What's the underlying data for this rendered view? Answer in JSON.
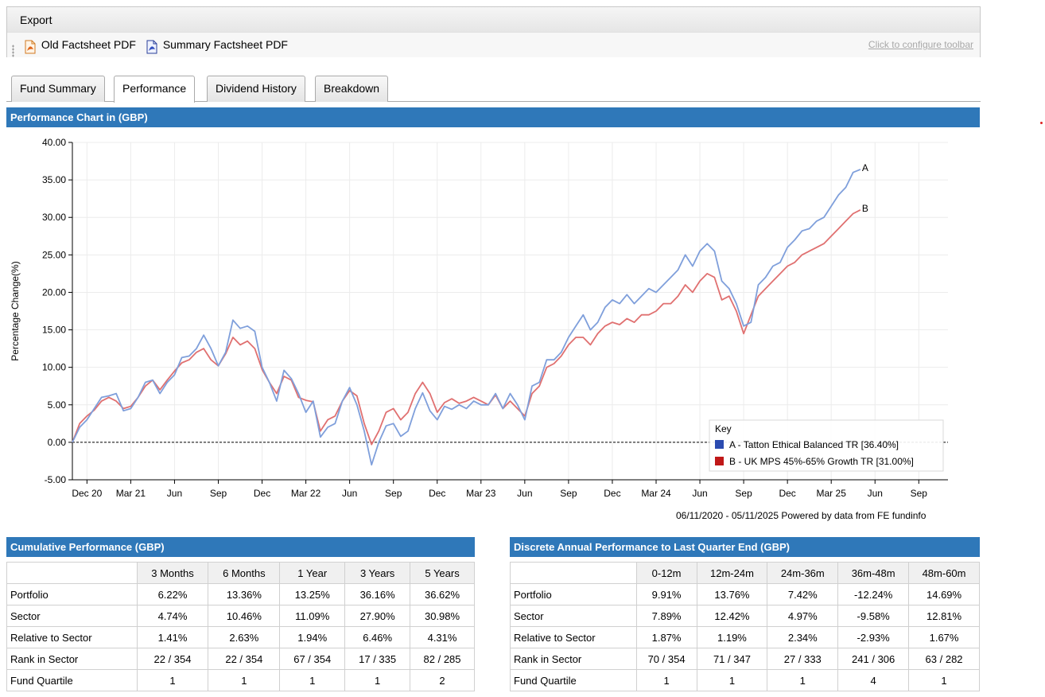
{
  "toolbar": {
    "export_label": "Export",
    "buttons": [
      {
        "label": "Old Factsheet PDF",
        "icon": "pdf-icon"
      },
      {
        "label": "Summary Factsheet PDF",
        "icon": "pdf-summary-icon"
      }
    ],
    "configure_link": "Click to configure toolbar"
  },
  "tabs": [
    {
      "label": "Fund Summary",
      "active": false
    },
    {
      "label": "Performance",
      "active": true
    },
    {
      "label": "Dividend History",
      "active": false
    },
    {
      "label": "Breakdown",
      "active": false
    }
  ],
  "chart_section": {
    "title": "Performance Chart in (GBP)",
    "source_text": "06/11/2020 - 05/11/2025 Powered by data from FE fundinfo"
  },
  "chart_data": {
    "type": "line",
    "ylabel": "Percentage Change(%)",
    "ylim": [
      -5,
      40
    ],
    "y_ticks": [
      "40.00",
      "35.00",
      "30.00",
      "25.00",
      "20.00",
      "15.00",
      "10.00",
      "5.00",
      "0.00",
      "-5.00"
    ],
    "x_ticks": [
      "Dec 20",
      "Mar 21",
      "Jun",
      "Sep",
      "Dec",
      "Mar 22",
      "Jun",
      "Sep",
      "Dec",
      "Mar 23",
      "Jun",
      "Sep",
      "Dec",
      "Mar 24",
      "Jun",
      "Sep",
      "Dec",
      "Mar 25",
      "Jun",
      "Sep"
    ],
    "x_range_months": [
      0,
      60
    ],
    "baseline": 0,
    "grid": true,
    "legend_title": "Key",
    "legend_position": "bottom-right",
    "series": [
      {
        "name": "A - Tatton Ethical Balanced TR [36.40%]",
        "end_label": "A",
        "color": "#7f9fdb",
        "key_color": "#2b4bb0",
        "points": [
          [
            0,
            0
          ],
          [
            0.5,
            2
          ],
          [
            1,
            3
          ],
          [
            1.5,
            4.5
          ],
          [
            2,
            6
          ],
          [
            2.5,
            6.2
          ],
          [
            3,
            6.5
          ],
          [
            3.5,
            4.2
          ],
          [
            4,
            4.5
          ],
          [
            4.5,
            6
          ],
          [
            5,
            8
          ],
          [
            5.5,
            8.3
          ],
          [
            6,
            6.5
          ],
          [
            6.5,
            8
          ],
          [
            7,
            9
          ],
          [
            7.5,
            11.3
          ],
          [
            8,
            11.5
          ],
          [
            8.5,
            12.5
          ],
          [
            9,
            14.3
          ],
          [
            9.5,
            12.5
          ],
          [
            10,
            10.2
          ],
          [
            10.5,
            12
          ],
          [
            11,
            16.3
          ],
          [
            11.5,
            15.2
          ],
          [
            12,
            15.5
          ],
          [
            12.5,
            14.8
          ],
          [
            13,
            10
          ],
          [
            13.5,
            8
          ],
          [
            14,
            5.5
          ],
          [
            14.5,
            9.6
          ],
          [
            15,
            8.5
          ],
          [
            15.5,
            6.5
          ],
          [
            16,
            4
          ],
          [
            16.5,
            5.5
          ],
          [
            17,
            0.7
          ],
          [
            17.5,
            2
          ],
          [
            18,
            2.5
          ],
          [
            18.5,
            5.5
          ],
          [
            19,
            7.3
          ],
          [
            19.5,
            5
          ],
          [
            20,
            1.5
          ],
          [
            20.5,
            -3
          ],
          [
            21,
            0
          ],
          [
            21.5,
            2.2
          ],
          [
            22,
            2.5
          ],
          [
            22.5,
            0.8
          ],
          [
            23,
            1.5
          ],
          [
            23.5,
            4.5
          ],
          [
            24,
            6.6
          ],
          [
            24.5,
            4.2
          ],
          [
            25,
            3
          ],
          [
            25.5,
            4.8
          ],
          [
            26,
            4.4
          ],
          [
            26.5,
            5
          ],
          [
            27,
            4.5
          ],
          [
            27.5,
            5.5
          ],
          [
            28,
            5
          ],
          [
            28.5,
            5
          ],
          [
            29,
            6.5
          ],
          [
            29.5,
            4.5
          ],
          [
            30,
            6.5
          ],
          [
            30.5,
            5
          ],
          [
            31,
            3
          ],
          [
            31.5,
            7.5
          ],
          [
            32,
            8
          ],
          [
            32.5,
            11
          ],
          [
            33,
            11
          ],
          [
            33.5,
            12
          ],
          [
            34,
            14
          ],
          [
            34.5,
            15.5
          ],
          [
            35,
            17
          ],
          [
            35.5,
            15
          ],
          [
            36,
            16
          ],
          [
            36.5,
            18
          ],
          [
            37,
            19
          ],
          [
            37.5,
            18.5
          ],
          [
            38,
            19.7
          ],
          [
            38.5,
            18.5
          ],
          [
            39,
            19.5
          ],
          [
            39.5,
            20.5
          ],
          [
            40,
            20
          ],
          [
            40.5,
            21
          ],
          [
            41,
            22
          ],
          [
            41.5,
            23
          ],
          [
            42,
            25
          ],
          [
            42.5,
            23.5
          ],
          [
            43,
            25.5
          ],
          [
            43.5,
            26.5
          ],
          [
            44,
            25.5
          ],
          [
            44.5,
            21.5
          ],
          [
            45,
            20.5
          ],
          [
            45.5,
            18.5
          ],
          [
            46,
            15.5
          ],
          [
            46.5,
            16
          ],
          [
            47,
            21
          ],
          [
            47.5,
            22
          ],
          [
            48,
            23.5
          ],
          [
            48.5,
            24
          ],
          [
            49,
            26
          ],
          [
            49.5,
            27
          ],
          [
            50,
            28.2
          ],
          [
            50.5,
            28.5
          ],
          [
            51,
            29.5
          ],
          [
            51.5,
            30
          ],
          [
            52,
            31.5
          ],
          [
            52.5,
            33
          ],
          [
            53,
            34
          ],
          [
            53.5,
            36
          ],
          [
            54,
            36.4
          ]
        ]
      },
      {
        "name": "B - UK MPS 45%-65% Growth TR [31.00%]",
        "end_label": "B",
        "color": "#e07070",
        "key_color": "#c01818",
        "points": [
          [
            0,
            0
          ],
          [
            0.5,
            2.5
          ],
          [
            1,
            3.5
          ],
          [
            1.5,
            4.3
          ],
          [
            2,
            5.5
          ],
          [
            2.5,
            6
          ],
          [
            3,
            5.5
          ],
          [
            3.5,
            4.5
          ],
          [
            4,
            4.8
          ],
          [
            4.5,
            6
          ],
          [
            5,
            7.5
          ],
          [
            5.5,
            8.3
          ],
          [
            6,
            7
          ],
          [
            6.5,
            8.3
          ],
          [
            7,
            9.5
          ],
          [
            7.5,
            10.6
          ],
          [
            8,
            11
          ],
          [
            8.5,
            12
          ],
          [
            9,
            12.5
          ],
          [
            9.5,
            11
          ],
          [
            10,
            10.2
          ],
          [
            10.5,
            11.8
          ],
          [
            11,
            14
          ],
          [
            11.5,
            13
          ],
          [
            12,
            13.5
          ],
          [
            12.5,
            12.5
          ],
          [
            13,
            9.7
          ],
          [
            13.5,
            8
          ],
          [
            14,
            6.5
          ],
          [
            14.5,
            8.8
          ],
          [
            15,
            8.3
          ],
          [
            15.5,
            6
          ],
          [
            16,
            5.6
          ],
          [
            16.5,
            5.4
          ],
          [
            17,
            1.5
          ],
          [
            17.5,
            3
          ],
          [
            18,
            3.5
          ],
          [
            18.5,
            5.5
          ],
          [
            19,
            6.9
          ],
          [
            19.5,
            6.2
          ],
          [
            20,
            2.5
          ],
          [
            20.5,
            -0.3
          ],
          [
            21,
            1.5
          ],
          [
            21.5,
            4
          ],
          [
            22,
            4.5
          ],
          [
            22.5,
            3
          ],
          [
            23,
            4
          ],
          [
            23.5,
            6.5
          ],
          [
            24,
            8
          ],
          [
            24.5,
            6.5
          ],
          [
            25,
            4
          ],
          [
            25.5,
            5.3
          ],
          [
            26,
            5.8
          ],
          [
            26.5,
            5.2
          ],
          [
            27,
            5.5
          ],
          [
            27.5,
            6
          ],
          [
            28,
            5.5
          ],
          [
            28.5,
            5
          ],
          [
            29,
            6.3
          ],
          [
            29.5,
            4.5
          ],
          [
            30,
            5.5
          ],
          [
            30.5,
            4.5
          ],
          [
            31,
            3.5
          ],
          [
            31.5,
            6.5
          ],
          [
            32,
            7.5
          ],
          [
            32.5,
            10
          ],
          [
            33,
            10.5
          ],
          [
            33.5,
            11.5
          ],
          [
            34,
            13
          ],
          [
            34.5,
            14
          ],
          [
            35,
            14
          ],
          [
            35.5,
            13
          ],
          [
            36,
            14.5
          ],
          [
            36.5,
            15.5
          ],
          [
            37,
            16
          ],
          [
            37.5,
            15.7
          ],
          [
            38,
            16.5
          ],
          [
            38.5,
            16
          ],
          [
            39,
            17
          ],
          [
            39.5,
            17
          ],
          [
            40,
            17.5
          ],
          [
            40.5,
            18.5
          ],
          [
            41,
            18.5
          ],
          [
            41.5,
            19.5
          ],
          [
            42,
            21
          ],
          [
            42.5,
            20
          ],
          [
            43,
            21.5
          ],
          [
            43.5,
            22.5
          ],
          [
            44,
            22
          ],
          [
            44.5,
            19
          ],
          [
            45,
            19.5
          ],
          [
            45.5,
            17.5
          ],
          [
            46,
            14.5
          ],
          [
            46.5,
            17
          ],
          [
            47,
            19.5
          ],
          [
            47.5,
            20.5
          ],
          [
            48,
            21.5
          ],
          [
            48.5,
            22.5
          ],
          [
            49,
            23.5
          ],
          [
            49.5,
            24
          ],
          [
            50,
            25
          ],
          [
            50.5,
            25.5
          ],
          [
            51,
            26
          ],
          [
            51.5,
            26.5
          ],
          [
            52,
            27.5
          ],
          [
            52.5,
            28.5
          ],
          [
            53,
            29.5
          ],
          [
            53.5,
            30.5
          ],
          [
            54,
            31
          ]
        ]
      }
    ]
  },
  "cumulative": {
    "title": "Cumulative Performance (GBP)",
    "columns": [
      "3 Months",
      "6 Months",
      "1 Year",
      "3 Years",
      "5 Years"
    ],
    "rows": [
      {
        "label": "Portfolio",
        "values": [
          "6.22%",
          "13.36%",
          "13.25%",
          "36.16%",
          "36.62%"
        ]
      },
      {
        "label": "Sector",
        "values": [
          "4.74%",
          "10.46%",
          "11.09%",
          "27.90%",
          "30.98%"
        ]
      },
      {
        "label": "Relative to Sector",
        "values": [
          "1.41%",
          "2.63%",
          "1.94%",
          "6.46%",
          "4.31%"
        ]
      },
      {
        "label": "Rank in Sector",
        "values": [
          "22 / 354",
          "22 / 354",
          "67 / 354",
          "17 / 335",
          "82 / 285"
        ]
      },
      {
        "label": "Fund Quartile",
        "values": [
          "1",
          "1",
          "1",
          "1",
          "2"
        ]
      }
    ]
  },
  "discrete": {
    "title": "Discrete Annual Performance to Last Quarter End (GBP)",
    "columns": [
      "0-12m",
      "12m-24m",
      "24m-36m",
      "36m-48m",
      "48m-60m"
    ],
    "rows": [
      {
        "label": "Portfolio",
        "values": [
          "9.91%",
          "13.76%",
          "7.42%",
          "-12.24%",
          "14.69%"
        ]
      },
      {
        "label": "Sector",
        "values": [
          "7.89%",
          "12.42%",
          "4.97%",
          "-9.58%",
          "12.81%"
        ]
      },
      {
        "label": "Relative to Sector",
        "values": [
          "1.87%",
          "1.19%",
          "2.34%",
          "-2.93%",
          "1.67%"
        ]
      },
      {
        "label": "Rank in Sector",
        "values": [
          "70 / 354",
          "71 / 347",
          "27 / 333",
          "241 / 306",
          "63 / 282"
        ]
      },
      {
        "label": "Fund Quartile",
        "values": [
          "1",
          "1",
          "1",
          "4",
          "1"
        ]
      }
    ]
  }
}
